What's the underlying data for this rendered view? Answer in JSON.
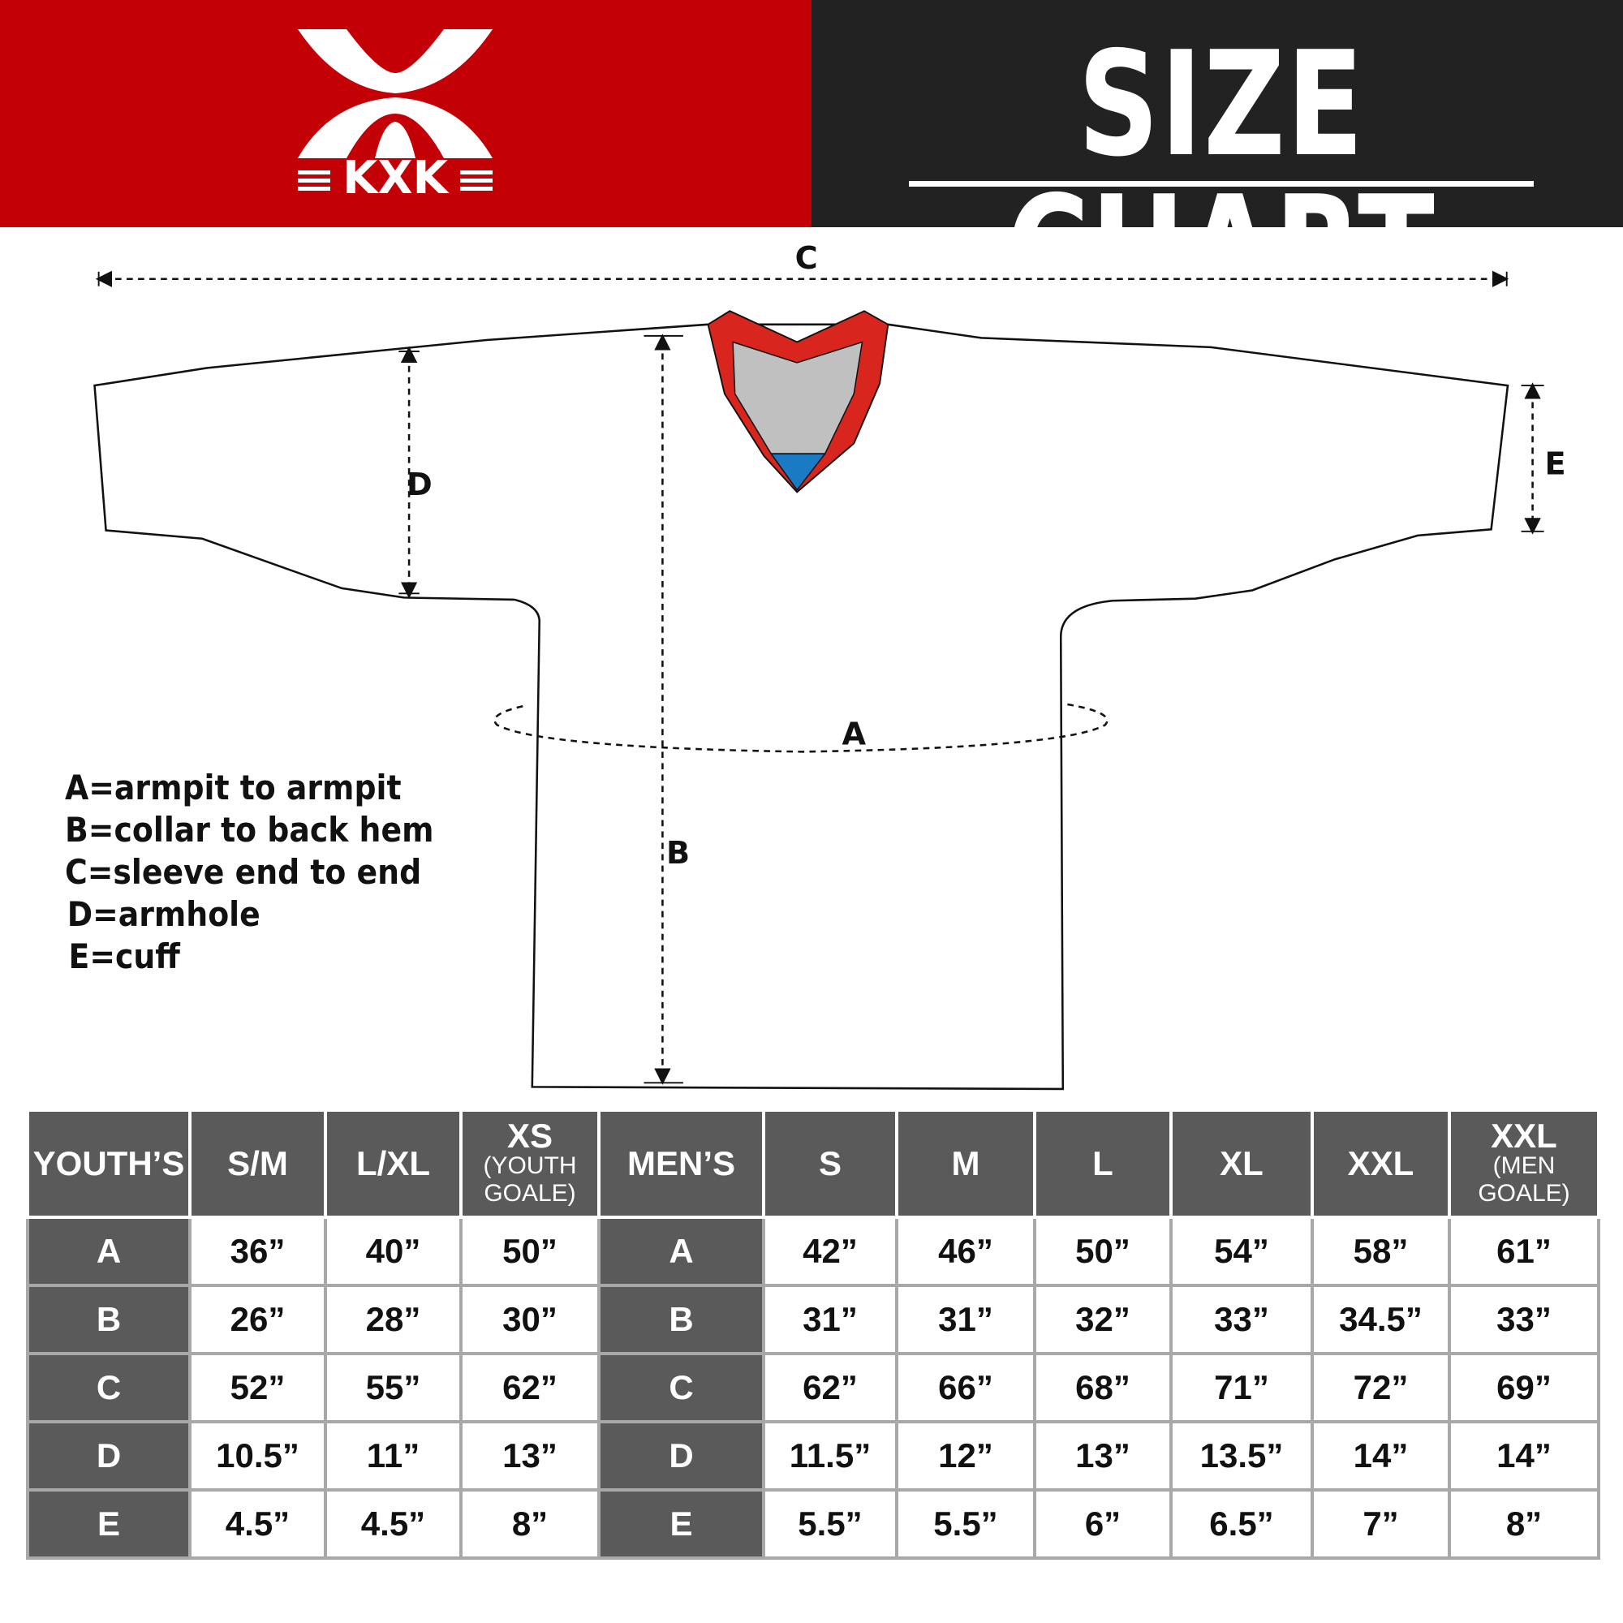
{
  "header": {
    "title": "SIZE CHART",
    "logo_text": "KXK",
    "brand_red": "#c40007",
    "dark_bg": "#222222"
  },
  "diagram": {
    "labels": {
      "a": "A",
      "b": "B",
      "c": "C",
      "d": "D",
      "e": "E"
    },
    "collar_colors": {
      "trim": "#d8261e",
      "inner": "#c0c0c0",
      "accent": "#1a7bc4"
    }
  },
  "legend": [
    "A=armpit to armpit",
    "B=collar to back hem",
    "C=sleeve end to end",
    "D=armhole",
    "E=cuff"
  ],
  "table": {
    "headers": [
      {
        "main": "YOUTH’S",
        "sub": ""
      },
      {
        "main": "S/M",
        "sub": ""
      },
      {
        "main": "L/XL",
        "sub": ""
      },
      {
        "main": "XS",
        "sub": "(YOUTH GOALE)"
      },
      {
        "main": "MEN’S",
        "sub": ""
      },
      {
        "main": "S",
        "sub": ""
      },
      {
        "main": "M",
        "sub": ""
      },
      {
        "main": "L",
        "sub": ""
      },
      {
        "main": "XL",
        "sub": ""
      },
      {
        "main": "XXL",
        "sub": ""
      },
      {
        "main": "XXL",
        "sub": "(MEN GOALE)"
      }
    ],
    "rows": [
      [
        "A",
        "36”",
        "40”",
        "50”",
        "A",
        "42”",
        "46”",
        "50”",
        "54”",
        "58”",
        "61”"
      ],
      [
        "B",
        "26”",
        "28”",
        "30”",
        "B",
        "31”",
        "31”",
        "32”",
        "33”",
        "34.5”",
        "33”"
      ],
      [
        "C",
        "52”",
        "55”",
        "62”",
        "C",
        "62”",
        "66”",
        "68”",
        "71”",
        "72”",
        "69”"
      ],
      [
        "D",
        "10.5”",
        "11”",
        "13”",
        "D",
        "11.5”",
        "12”",
        "13”",
        "13.5”",
        "14”",
        "14”"
      ],
      [
        "E",
        "4.5”",
        "4.5”",
        "8”",
        "E",
        "5.5”",
        "5.5”",
        "6”",
        "6.5”",
        "7”",
        "8”"
      ]
    ]
  }
}
